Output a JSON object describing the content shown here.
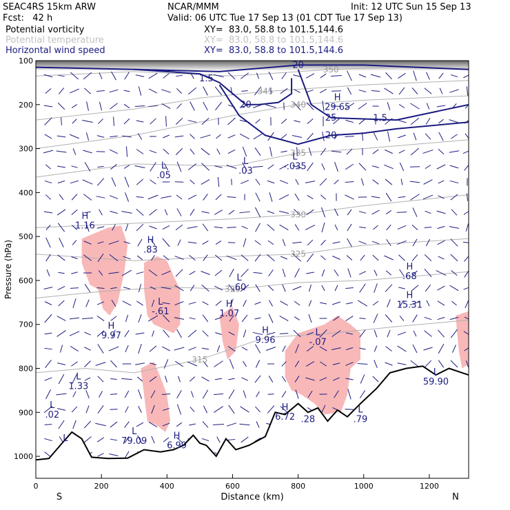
{
  "header": {
    "model": "SEAC4RS 15km ARW",
    "org": "NCAR/MMM",
    "init": "Init: 12 UTC Sun 15 Sep 13",
    "fcst": "Fcst:   42 h",
    "valid": "Valid: 06 UTC Tue 17 Sep 13 (01 CDT Tue 17 Sep 13)"
  },
  "fields": [
    {
      "name": "Potential vorticity",
      "xy": "XY=  83.0, 58.8 to 101.5,144.6",
      "color": "#000000"
    },
    {
      "name": "Potential temperature",
      "xy": "XY=  83.0, 58.8 to 101.5,144.6",
      "color": "#c0c0c0"
    },
    {
      "name": "Horizontal wind speed",
      "xy": "XY=  83.0, 58.8 to 101.5,144.6",
      "color": "#1a1a80"
    }
  ],
  "colors": {
    "pv_fill": "#f8b8b8",
    "wind": "#1a1a80",
    "theta": "#b0b0b0",
    "terrain": "#000000",
    "pv_line": "#4a0030"
  },
  "chart_data": {
    "type": "cross-section",
    "xlabel": "Distance (km)",
    "ylabel": "Pressure (hPa)",
    "xlim": [
      0,
      1320
    ],
    "ylim": [
      1050,
      100
    ],
    "xticks": [
      "0",
      "200",
      "400",
      "600",
      "800",
      "1000",
      "1200"
    ],
    "yticks": [
      "100",
      "200",
      "300",
      "400",
      "500",
      "600",
      "700",
      "800",
      "900",
      "1000"
    ],
    "end_labels": {
      "left": "S",
      "right": "N"
    },
    "terrain": [
      [
        0,
        1008
      ],
      [
        40,
        1005
      ],
      [
        80,
        970
      ],
      [
        110,
        945
      ],
      [
        140,
        960
      ],
      [
        170,
        1002
      ],
      [
        220,
        1005
      ],
      [
        280,
        1004
      ],
      [
        330,
        985
      ],
      [
        380,
        990
      ],
      [
        420,
        985
      ],
      [
        450,
        975
      ],
      [
        480,
        952
      ],
      [
        500,
        970
      ],
      [
        520,
        975
      ],
      [
        550,
        1000
      ],
      [
        580,
        960
      ],
      [
        610,
        985
      ],
      [
        650,
        975
      ],
      [
        700,
        955
      ],
      [
        730,
        900
      ],
      [
        760,
        905
      ],
      [
        800,
        880
      ],
      [
        830,
        900
      ],
      [
        860,
        890
      ],
      [
        890,
        920
      ],
      [
        920,
        895
      ],
      [
        950,
        910
      ],
      [
        990,
        880
      ],
      [
        1040,
        845
      ],
      [
        1080,
        810
      ],
      [
        1130,
        800
      ],
      [
        1180,
        795
      ],
      [
        1220,
        815
      ],
      [
        1260,
        800
      ],
      [
        1300,
        810
      ],
      [
        1320,
        815
      ]
    ],
    "theta_contours": [
      {
        "label": "350",
        "p": [
          [
            0,
            135
          ],
          [
            300,
            125
          ],
          [
            600,
            135
          ],
          [
            900,
            120
          ],
          [
            1320,
            110
          ]
        ]
      },
      {
        "label": "345",
        "p": [
          [
            0,
            235
          ],
          [
            300,
            210
          ],
          [
            500,
            185
          ],
          [
            700,
            170
          ],
          [
            1000,
            155
          ],
          [
            1320,
            145
          ]
        ]
      },
      {
        "label": "340",
        "p": [
          [
            0,
            300
          ],
          [
            300,
            270
          ],
          [
            600,
            225
          ],
          [
            800,
            200
          ],
          [
            1000,
            190
          ],
          [
            1320,
            180
          ]
        ]
      },
      {
        "label": "335",
        "p": [
          [
            0,
            365
          ],
          [
            300,
            335
          ],
          [
            600,
            340
          ],
          [
            800,
            310
          ],
          [
            1000,
            300
          ],
          [
            1320,
            280
          ]
        ]
      },
      {
        "label": "330",
        "p": [
          [
            0,
            480
          ],
          [
            300,
            470
          ],
          [
            600,
            460
          ],
          [
            800,
            450
          ],
          [
            1000,
            430
          ],
          [
            1320,
            405
          ]
        ]
      },
      {
        "label": "325",
        "p": [
          [
            0,
            540
          ],
          [
            300,
            555
          ],
          [
            600,
            545
          ],
          [
            800,
            540
          ],
          [
            1000,
            520
          ],
          [
            1320,
            505
          ]
        ]
      },
      {
        "label": "320",
        "p": [
          [
            0,
            640
          ],
          [
            200,
            625
          ],
          [
            400,
            615
          ],
          [
            600,
            620
          ],
          [
            800,
            605
          ],
          [
            1000,
            600
          ],
          [
            1320,
            580
          ]
        ]
      },
      {
        "label": "315",
        "p": [
          [
            0,
            810
          ],
          [
            150,
            800
          ],
          [
            300,
            810
          ],
          [
            500,
            780
          ],
          [
            700,
            730
          ],
          [
            900,
            720
          ],
          [
            1100,
            705
          ],
          [
            1320,
            690
          ]
        ]
      }
    ],
    "wind_contours": [
      {
        "label": "20",
        "p": [
          [
            300,
            120
          ],
          [
            500,
            130
          ],
          [
            560,
            150
          ],
          [
            600,
            175
          ],
          [
            640,
            200
          ],
          [
            680,
            200
          ],
          [
            740,
            195
          ],
          [
            780,
            175
          ],
          [
            780,
            140
          ]
        ]
      },
      {
        "label": "20",
        "p": [
          [
            0,
            115
          ],
          [
            300,
            120
          ],
          [
            560,
            125
          ],
          [
            800,
            110
          ],
          [
            1000,
            110
          ],
          [
            1320,
            120
          ]
        ]
      },
      {
        "label": "25",
        "p": [
          [
            800,
            120
          ],
          [
            840,
            200
          ],
          [
            900,
            230
          ],
          [
            1100,
            235
          ],
          [
            1320,
            200
          ]
        ]
      },
      {
        "label": "20",
        "p": [
          [
            560,
            155
          ],
          [
            620,
            225
          ],
          [
            700,
            270
          ],
          [
            800,
            290
          ],
          [
            900,
            270
          ],
          [
            1000,
            265
          ],
          [
            1100,
            255
          ],
          [
            1320,
            240
          ]
        ]
      }
    ],
    "pv_regions": [
      [
        [
          140,
          505
        ],
        [
          220,
          480
        ],
        [
          260,
          475
        ],
        [
          280,
          520
        ],
        [
          270,
          580
        ],
        [
          250,
          650
        ],
        [
          225,
          680
        ],
        [
          205,
          665
        ],
        [
          190,
          620
        ],
        [
          165,
          610
        ],
        [
          140,
          560
        ]
      ],
      [
        [
          330,
          560
        ],
        [
          370,
          545
        ],
        [
          400,
          555
        ],
        [
          420,
          590
        ],
        [
          440,
          620
        ],
        [
          440,
          700
        ],
        [
          420,
          720
        ],
        [
          390,
          710
        ],
        [
          360,
          700
        ],
        [
          340,
          680
        ],
        [
          330,
          620
        ]
      ],
      [
        [
          320,
          800
        ],
        [
          360,
          785
        ],
        [
          380,
          820
        ],
        [
          400,
          860
        ],
        [
          410,
          920
        ],
        [
          395,
          945
        ],
        [
          370,
          930
        ],
        [
          340,
          920
        ],
        [
          330,
          860
        ]
      ],
      [
        [
          560,
          680
        ],
        [
          600,
          660
        ],
        [
          620,
          700
        ],
        [
          610,
          760
        ],
        [
          585,
          780
        ],
        [
          570,
          740
        ]
      ],
      [
        [
          760,
          760
        ],
        [
          800,
          720
        ],
        [
          880,
          700
        ],
        [
          920,
          680
        ],
        [
          960,
          700
        ],
        [
          990,
          720
        ],
        [
          990,
          780
        ],
        [
          960,
          800
        ],
        [
          950,
          860
        ],
        [
          930,
          900
        ],
        [
          880,
          905
        ],
        [
          850,
          880
        ],
        [
          810,
          860
        ],
        [
          780,
          850
        ],
        [
          760,
          820
        ]
      ],
      [
        [
          1280,
          680
        ],
        [
          1320,
          670
        ],
        [
          1320,
          790
        ],
        [
          1300,
          800
        ],
        [
          1290,
          760
        ]
      ]
    ],
    "annotations": [
      {
        "sym": "H",
        "val": "1.16",
        "x": 150,
        "p": 460
      },
      {
        "sym": "H",
        "val": ".83",
        "x": 350,
        "p": 515
      },
      {
        "sym": "L",
        "val": ".05",
        "x": 390,
        "p": 345
      },
      {
        "sym": "L",
        "val": ".03",
        "x": 640,
        "p": 335
      },
      {
        "sym": "L",
        "val": "-.035",
        "x": 790,
        "p": 325
      },
      {
        "sym": "H",
        "val": "29.65",
        "x": 920,
        "p": 190
      },
      {
        "sym": "",
        "val": "1.5",
        "x": 1050,
        "p": 215
      },
      {
        "sym": "",
        "val": "1.5",
        "x": 520,
        "p": 125
      },
      {
        "sym": "L",
        "val": "-.61",
        "x": 380,
        "p": 655
      },
      {
        "sym": "H",
        "val": "9.97",
        "x": 230,
        "p": 710
      },
      {
        "sym": "L",
        "val": ".60",
        "x": 620,
        "p": 600
      },
      {
        "sym": "H",
        "val": "1.07",
        "x": 590,
        "p": 660
      },
      {
        "sym": "H",
        "val": "9.96",
        "x": 700,
        "p": 720
      },
      {
        "sym": "L",
        "val": "-.07",
        "x": 860,
        "p": 725
      },
      {
        "sym": "H",
        "val": ".68",
        "x": 1140,
        "p": 575
      },
      {
        "sym": "H",
        "val": "15.31",
        "x": 1140,
        "p": 640
      },
      {
        "sym": "L",
        "val": "1.33",
        "x": 130,
        "p": 825
      },
      {
        "sym": "L",
        "val": ".02",
        "x": 50,
        "p": 890
      },
      {
        "sym": "L",
        "val": "79.09",
        "x": 300,
        "p": 950
      },
      {
        "sym": "H",
        "val": "6.99",
        "x": 430,
        "p": 960
      },
      {
        "sym": "H",
        "val": "6.72",
        "x": 760,
        "p": 895
      },
      {
        "sym": "",
        "val": ".28",
        "x": 830,
        "p": 900
      },
      {
        "sym": "L",
        "val": ".79",
        "x": 990,
        "p": 900
      },
      {
        "sym": "L",
        "val": "",
        "x": 90,
        "p": 965
      },
      {
        "sym": "L",
        "val": "59.90",
        "x": 1220,
        "p": 815
      }
    ]
  }
}
